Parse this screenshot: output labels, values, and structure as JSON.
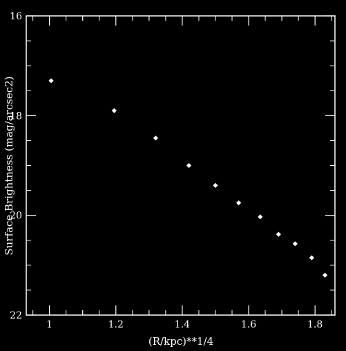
{
  "chart_data": {
    "type": "scatter",
    "title": "",
    "xlabel": "(R/kpc)**1/4",
    "ylabel": "Surface Brightness (mag/arcsec2)",
    "xlim": [
      0.93,
      1.86
    ],
    "ylim": [
      16,
      22
    ],
    "y_inverted": true,
    "grid": false,
    "colors": {
      "background": "#000000",
      "foreground": "#ffffff",
      "marker": "#ffffff"
    },
    "x_ticks": {
      "labels": [
        "1",
        "1.2",
        "1.4",
        "1.6",
        "1.8"
      ],
      "values": [
        1.0,
        1.2,
        1.4,
        1.6,
        1.8
      ]
    },
    "y_ticks": {
      "labels": [
        "16",
        "18",
        "20",
        "22"
      ],
      "values": [
        16,
        18,
        20,
        22
      ]
    },
    "series": [
      {
        "marker": "diamond",
        "x": [
          1.005,
          1.195,
          1.32,
          1.42,
          1.5,
          1.57,
          1.635,
          1.69,
          1.74,
          1.79,
          1.83
        ],
        "y": [
          17.3,
          17.9,
          18.45,
          19.0,
          19.4,
          19.75,
          20.03,
          20.38,
          20.57,
          20.85,
          21.2
        ]
      }
    ]
  }
}
